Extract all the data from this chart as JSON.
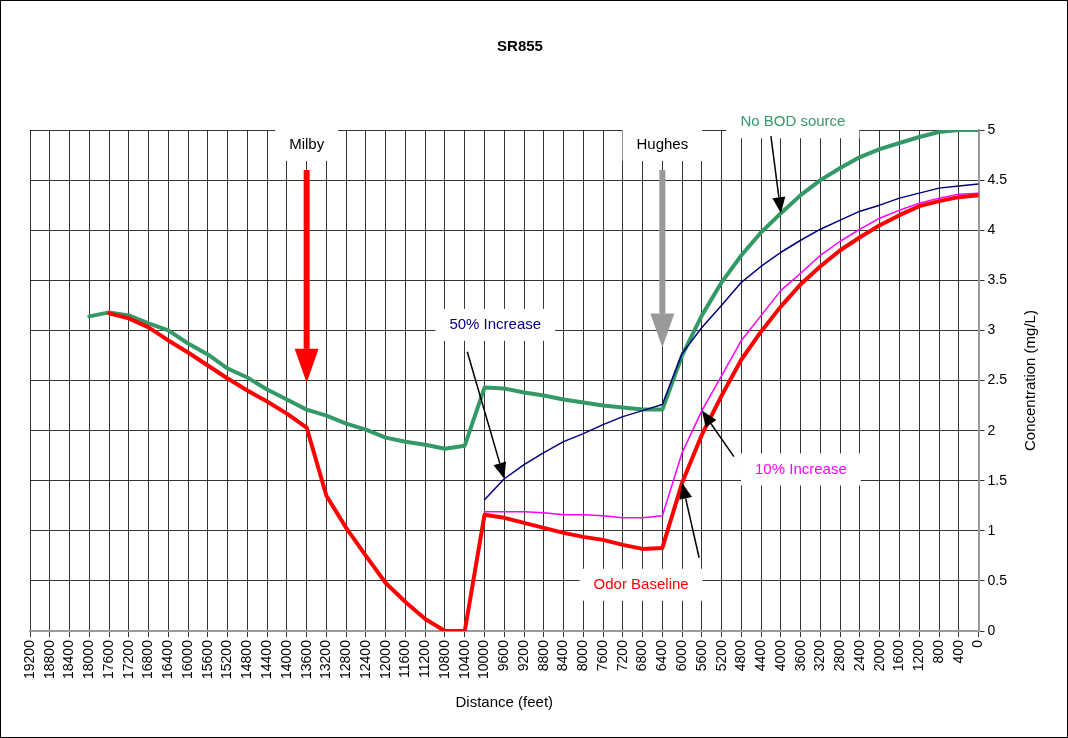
{
  "chart_data": {
    "type": "line",
    "title": "SR855",
    "xlabel": "Distance (feet)",
    "ylabel": "Concentration (mg/L)",
    "x": [
      18000,
      17600,
      17200,
      16800,
      16400,
      16000,
      15600,
      15200,
      14800,
      14400,
      14000,
      13600,
      13200,
      12800,
      12400,
      12000,
      11600,
      11200,
      10800,
      10400,
      10000,
      9600,
      9200,
      8800,
      8400,
      8000,
      7600,
      7200,
      6800,
      6400,
      6000,
      5600,
      5200,
      4800,
      4400,
      4000,
      3600,
      3200,
      2800,
      2400,
      2000,
      1600,
      1200,
      800,
      400,
      0
    ],
    "series": [
      {
        "name": "No BOD source",
        "color": "#339966",
        "values": [
          3.14,
          3.18,
          3.15,
          3.07,
          3.0,
          2.87,
          2.76,
          2.62,
          2.53,
          2.41,
          2.31,
          2.21,
          2.15,
          2.07,
          2.01,
          1.93,
          1.89,
          1.86,
          1.82,
          1.85,
          2.43,
          2.42,
          2.38,
          2.35,
          2.31,
          2.28,
          2.25,
          2.23,
          2.21,
          2.21,
          2.75,
          3.15,
          3.48,
          3.75,
          3.98,
          4.17,
          4.35,
          4.5,
          4.62,
          4.73,
          4.81,
          4.87,
          4.93,
          4.98,
          5.0,
          5.0
        ]
      },
      {
        "name": "50% Increase",
        "color": "#000080",
        "values": [
          null,
          null,
          null,
          null,
          null,
          null,
          null,
          null,
          null,
          null,
          null,
          null,
          null,
          null,
          null,
          null,
          null,
          null,
          null,
          null,
          1.31,
          1.52,
          1.66,
          1.78,
          1.89,
          1.97,
          2.06,
          2.14,
          2.2,
          2.26,
          2.77,
          3.03,
          3.25,
          3.48,
          3.64,
          3.78,
          3.9,
          4.01,
          4.1,
          4.19,
          4.25,
          4.32,
          4.37,
          4.42,
          4.44,
          4.46
        ]
      },
      {
        "name": "10% Increase",
        "color": "#ff00ff",
        "values": [
          null,
          null,
          null,
          null,
          null,
          null,
          null,
          null,
          null,
          null,
          null,
          null,
          null,
          null,
          null,
          null,
          null,
          null,
          null,
          null,
          1.19,
          1.19,
          1.19,
          1.18,
          1.16,
          1.16,
          1.15,
          1.13,
          1.13,
          1.15,
          1.78,
          2.2,
          2.55,
          2.9,
          3.15,
          3.4,
          3.57,
          3.75,
          3.89,
          4.01,
          4.12,
          4.2,
          4.27,
          4.32,
          4.36,
          4.37
        ]
      },
      {
        "name": "Odor Baseline",
        "color": "#ff0000",
        "values": [
          null,
          3.17,
          3.12,
          3.03,
          2.9,
          2.78,
          2.65,
          2.52,
          2.4,
          2.29,
          2.17,
          2.03,
          1.35,
          1.03,
          0.75,
          0.48,
          0.29,
          0.12,
          0,
          0,
          1.16,
          1.13,
          1.08,
          1.03,
          0.98,
          0.94,
          0.91,
          0.86,
          0.82,
          0.83,
          1.48,
          1.96,
          2.35,
          2.71,
          2.99,
          3.24,
          3.46,
          3.64,
          3.8,
          3.93,
          4.05,
          4.15,
          4.24,
          4.29,
          4.33,
          4.35
        ]
      }
    ],
    "annotations": [
      "Milby",
      "Hughes"
    ],
    "xlim": [
      19200,
      0
    ],
    "xticks": [
      19200,
      18800,
      18400,
      18000,
      17600,
      17200,
      16800,
      16400,
      16000,
      15600,
      15200,
      14800,
      14400,
      14000,
      13600,
      13200,
      12800,
      12400,
      12000,
      11600,
      11200,
      10800,
      10400,
      10000,
      9600,
      9200,
      8800,
      8400,
      8000,
      7600,
      7200,
      6800,
      6400,
      6000,
      5600,
      5200,
      4800,
      4400,
      4000,
      3600,
      3200,
      2800,
      2400,
      2000,
      1600,
      1200,
      800,
      400,
      0
    ],
    "ylim": [
      0,
      5
    ],
    "yticks": [
      0,
      0.5,
      1,
      1.5,
      2,
      2.5,
      3,
      3.5,
      4,
      4.5,
      5
    ],
    "grid": true,
    "legend": false,
    "marker": "none",
    "line_style": "solid"
  }
}
